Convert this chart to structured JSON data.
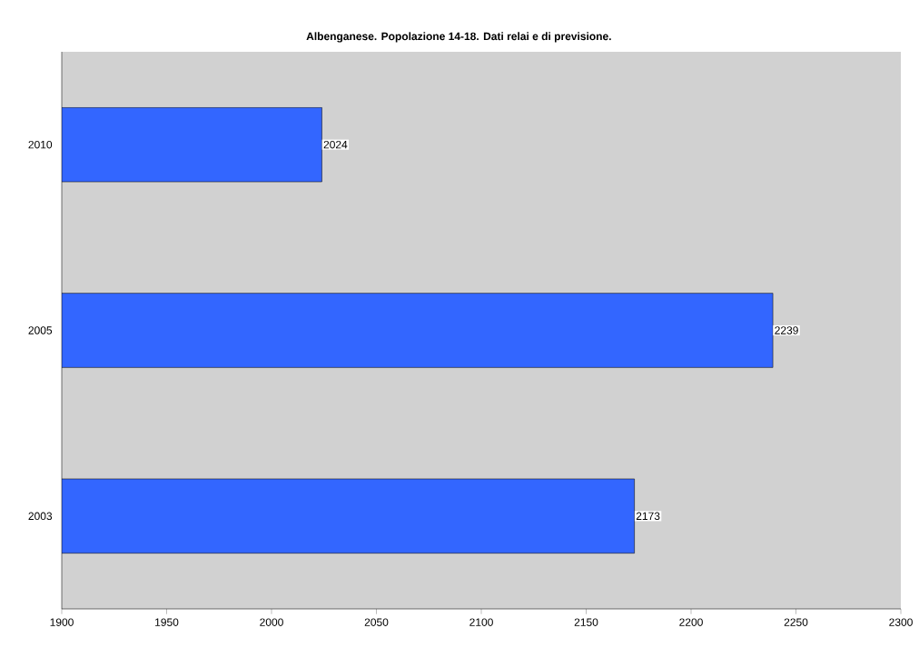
{
  "chart_data": {
    "type": "bar",
    "orientation": "horizontal",
    "title": "Albenganese. Popolazione 14-18. Dati relai e di previsione.",
    "categories": [
      "2010",
      "2005",
      "2003"
    ],
    "values": [
      2024,
      2239,
      2173
    ],
    "color": "#3366ff",
    "xlim": [
      1900,
      2300
    ],
    "xticks": [
      1900,
      1950,
      2000,
      2050,
      2100,
      2150,
      2200,
      2250,
      2300
    ],
    "data_labels": true,
    "grid": false
  }
}
